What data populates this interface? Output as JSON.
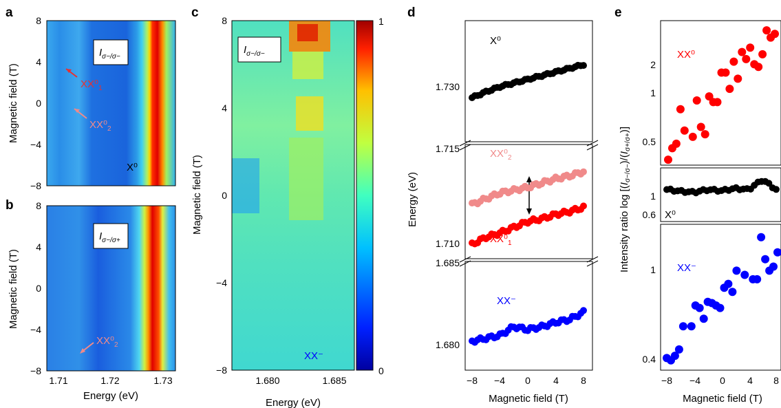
{
  "panel_labels": {
    "a": "a",
    "b": "b",
    "c": "c",
    "d": "d",
    "e": "e"
  },
  "panel_a": {
    "ylabel": "Magnetic field (T)",
    "yticks": [
      "8",
      "4",
      "0",
      "−4",
      "−8"
    ],
    "inset": "I",
    "inset_sub": "σ−/σ−",
    "ann": {
      "xx01": "XX⁰",
      "xx01_sub": "1",
      "xx02": "XX⁰",
      "xx02_sub": "2",
      "x0": "X⁰"
    }
  },
  "panel_b": {
    "ylabel": "Magnetic field (T)",
    "yticks": [
      "8",
      "4",
      "0",
      "−4",
      "−8"
    ],
    "xticks": [
      "1.71",
      "1.72",
      "1.73"
    ],
    "xlabel": "Energy (eV)",
    "inset": "I",
    "inset_sub": "σ−/σ+",
    "ann": {
      "xx02": "XX⁰",
      "xx02_sub": "2"
    }
  },
  "panel_c": {
    "ylabel": "Magnetic field (T)",
    "yticks": [
      "8",
      "4",
      "0",
      "−4",
      "−8"
    ],
    "xticks": [
      "1.680",
      "1.685"
    ],
    "xlabel": "Energy (eV)",
    "inset": "I",
    "inset_sub": "σ−/σ−",
    "ann": {
      "xxm": "XX⁻"
    },
    "colorbar_ticks": [
      "1",
      "0"
    ]
  },
  "panel_d": {
    "ylabel": "Energy (eV)",
    "xlabel": "Magnetic field (T)",
    "xticks": [
      "−8",
      "−4",
      "0",
      "4",
      "8"
    ],
    "yticks": [
      "1.730",
      "1.715",
      "1.710",
      "1.685",
      "1.680"
    ],
    "labels": {
      "x0": "X⁰",
      "xx02": "XX⁰",
      "xx02_sub": "2",
      "xx01": "XX⁰",
      "xx01_sub": "1",
      "xxm": "XX⁻"
    }
  },
  "panel_e": {
    "ylabel": "Intensity ratio log [(I",
    "ylabel_full": "Intensity ratio log [(Iσ−/σ−)/(Iσ+/σ+)]",
    "xlabel": "Magnetic field (T)",
    "xticks": [
      "−8",
      "−4",
      "0",
      "4",
      "8"
    ],
    "top_ticks": [
      "2",
      "1",
      "0.5"
    ],
    "mid_ticks": [
      "1",
      "0.6"
    ],
    "bot_ticks": [
      "1",
      "0.4"
    ],
    "labels": {
      "xx0": "XX⁰",
      "x0": "X⁰",
      "xxm": "XX⁻"
    }
  },
  "colors": {
    "xx02": "#f08a8a",
    "xx01": "#ff0000",
    "x0": "#000000",
    "xxm": "#0000ff",
    "arrow_light": "#f08a8a",
    "arrow_red": "#e83030"
  },
  "chart_data": [
    {
      "type": "scatter",
      "panel": "d",
      "xlabel": "Magnetic field (T)",
      "ylabel": "Energy (eV)",
      "series": [
        {
          "name": "X⁰",
          "x": [
            -8,
            -6,
            -4,
            -2,
            0,
            2,
            4,
            6,
            8
          ],
          "values": [
            1.726,
            1.7268,
            1.7275,
            1.728,
            1.7285,
            1.729,
            1.7295,
            1.73,
            1.7305
          ]
        },
        {
          "name": "XX⁰2",
          "x": [
            -8,
            -6,
            -4,
            -2,
            0,
            2,
            4,
            6,
            8
          ],
          "values": [
            1.7118,
            1.7122,
            1.7126,
            1.7128,
            1.713,
            1.7133,
            1.7136,
            1.7138,
            1.7141
          ]
        },
        {
          "name": "XX⁰1",
          "x": [
            -8,
            -6,
            -4,
            -2,
            0,
            2,
            4,
            6,
            8
          ],
          "values": [
            1.709,
            1.7095,
            1.7098,
            1.7102,
            1.7106,
            1.7108,
            1.7111,
            1.7113,
            1.7116
          ]
        },
        {
          "name": "XX⁻",
          "x": [
            -8,
            -6,
            -4,
            -2,
            0,
            2,
            4,
            6,
            8
          ],
          "values": [
            1.6805,
            1.6807,
            1.6809,
            1.6815,
            1.6813,
            1.6815,
            1.6818,
            1.682,
            1.6825
          ]
        }
      ]
    },
    {
      "type": "scatter",
      "panel": "e",
      "xlabel": "Magnetic field (T)",
      "series": [
        {
          "name": "XX⁰",
          "x": [
            -7.8,
            -7.2,
            -6.6,
            -6,
            -5.4,
            -4.2,
            -3.6,
            -3,
            -2.4,
            -1.8,
            -1.2,
            -0.6,
            0,
            0.6,
            1.2,
            1.8,
            2.4,
            3,
            3.6,
            4.2,
            4.8,
            5.4,
            6,
            6.6,
            7.2,
            7.8
          ],
          "values": [
            0.45,
            0.52,
            0.55,
            0.85,
            0.65,
            0.6,
            0.95,
            0.68,
            0.62,
            1.0,
            0.93,
            0.93,
            1.35,
            1.35,
            1.1,
            1.55,
            1.25,
            1.75,
            1.6,
            1.85,
            1.5,
            1.45,
            1.7,
            2.3,
            2.1,
            2.2
          ]
        },
        {
          "name": "X⁰",
          "x": [
            -8,
            -6,
            -4,
            -2,
            0,
            2,
            4,
            6,
            8
          ],
          "values": [
            1.0,
            0.97,
            0.95,
            1.0,
            0.98,
            1.02,
            1.0,
            1.2,
            1.0
          ]
        },
        {
          "name": "XX⁻",
          "x": [
            -8,
            -7.4,
            -6.8,
            -6.2,
            -5.6,
            -4.4,
            -3.8,
            -3.2,
            -2.6,
            -2,
            -1.4,
            -0.8,
            -0.2,
            0.4,
            1,
            1.6,
            2.2,
            3.4,
            4.6,
            5.2,
            5.8,
            6.4,
            7,
            7.6,
            8.2
          ],
          "values": [
            0.38,
            0.37,
            0.39,
            0.42,
            0.55,
            0.55,
            0.7,
            0.68,
            0.6,
            0.73,
            0.72,
            0.7,
            0.68,
            0.86,
            0.9,
            0.82,
            1.05,
            1.0,
            0.95,
            0.95,
            1.55,
            1.2,
            1.05,
            1.1,
            1.3
          ]
        }
      ]
    }
  ]
}
